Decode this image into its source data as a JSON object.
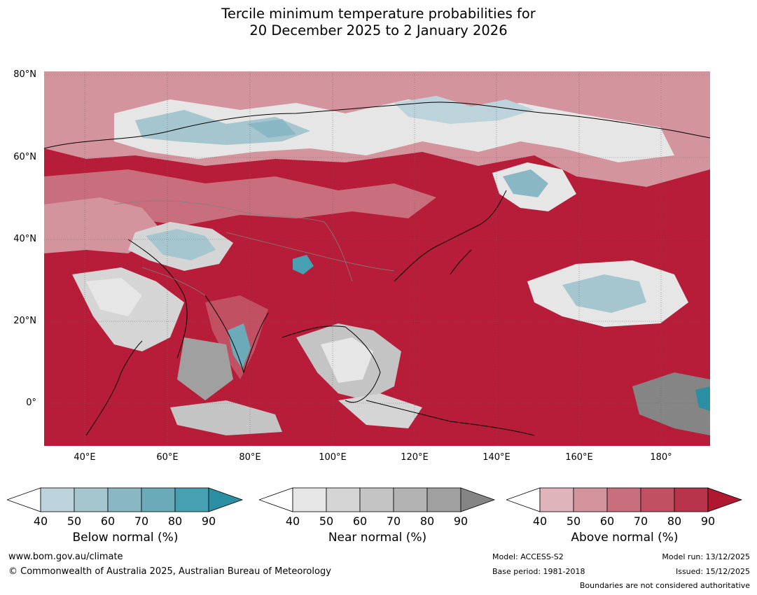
{
  "title": {
    "line1": "Tercile minimum temperature probabilities for",
    "line2": "20 December 2025 to 2 January 2026"
  },
  "map": {
    "lat_labels": [
      "80°N",
      "60°N",
      "40°N",
      "20°N",
      "0°"
    ],
    "lon_labels": [
      "40°E",
      "60°E",
      "80°E",
      "100°E",
      "120°E",
      "140°E",
      "160°E",
      "180°"
    ]
  },
  "colorbars": [
    {
      "title": "Below normal (%)",
      "ticks": [
        "40",
        "50",
        "60",
        "70",
        "80",
        "90"
      ],
      "colors": [
        "#ffffff",
        "#bdd3db",
        "#a5c6ce",
        "#89b8c4",
        "#6babb9",
        "#47a0b1",
        "#2a8fa3"
      ]
    },
    {
      "title": "Near normal (%)",
      "ticks": [
        "40",
        "50",
        "60",
        "70",
        "80",
        "90"
      ],
      "colors": [
        "#ffffff",
        "#e6e6e6",
        "#d5d5d5",
        "#c4c4c4",
        "#b3b3b3",
        "#a0a0a0",
        "#858585"
      ]
    },
    {
      "title": "Above normal (%)",
      "ticks": [
        "40",
        "50",
        "60",
        "70",
        "80",
        "90"
      ],
      "colors": [
        "#ffffff",
        "#e0b4bb",
        "#d4949e",
        "#c96e7c",
        "#c15062",
        "#b8344a",
        "#b0182f"
      ]
    }
  ],
  "footer": {
    "url": "www.bom.gov.au/climate",
    "copyright": "© Commonwealth of Australia 2025, Australian Bureau of Meteorology",
    "model": "Model: ACCESS-S2",
    "base_period": "Base period: 1981-2018",
    "model_run": "Model run: 13/12/2025",
    "issued": "Issued: 15/12/2025",
    "disclaimer": "Boundaries are not considered authoritative"
  }
}
